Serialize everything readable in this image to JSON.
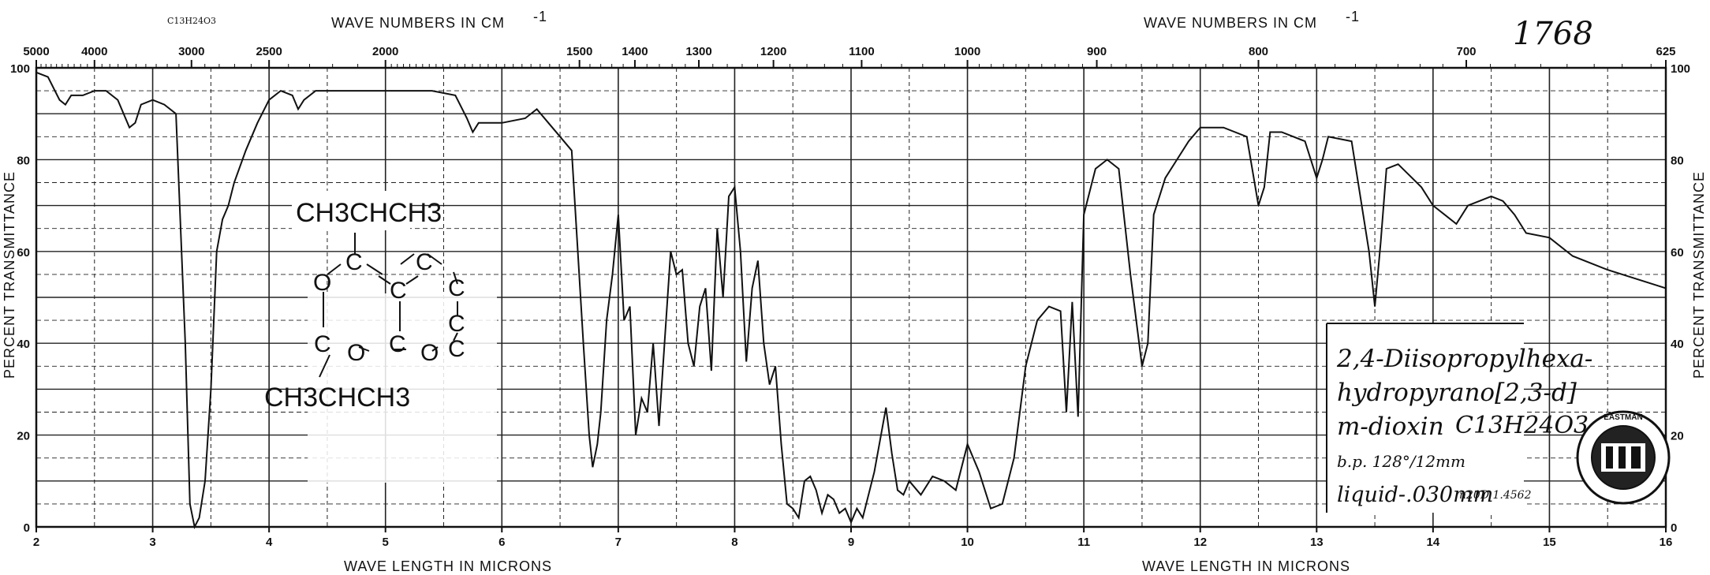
{
  "chart_data": {
    "type": "line",
    "top_axis_title_left": "WAVE NUMBERS IN CM",
    "top_axis_title_right": "WAVE NUMBERS IN CM",
    "top_axis_sup": "-1",
    "bottom_axis_title": "WAVE LENGTH IN MICRONS",
    "ylabel": "PERCENT TRANSMITTANCE",
    "formula_tag": "C13H24O3",
    "catalog_number": "1768",
    "xlim": [
      2,
      16
    ],
    "ylim": [
      0,
      100
    ],
    "x_ticks": [
      "2",
      "3",
      "4",
      "5",
      "6",
      "7",
      "8",
      "9",
      "10",
      "11",
      "12",
      "13",
      "14",
      "15",
      "16"
    ],
    "y_ticks": [
      "0",
      "20",
      "40",
      "60",
      "80",
      "100"
    ],
    "wavenumber_ticks": [
      {
        "cm": 5000,
        "label": "5000"
      },
      {
        "cm": 4000,
        "label": "4000"
      },
      {
        "cm": 3000,
        "label": "3000"
      },
      {
        "cm": 2500,
        "label": "2500"
      },
      {
        "cm": 2000,
        "label": "2000"
      },
      {
        "cm": 1500,
        "label": "1500"
      },
      {
        "cm": 1400,
        "label": "1400"
      },
      {
        "cm": 1300,
        "label": "1300"
      },
      {
        "cm": 1200,
        "label": "1200"
      },
      {
        "cm": 1100,
        "label": "1100"
      },
      {
        "cm": 1000,
        "label": "1000"
      },
      {
        "cm": 900,
        "label": "900"
      },
      {
        "cm": 800,
        "label": "800"
      },
      {
        "cm": 700,
        "label": "700"
      },
      {
        "cm": 625,
        "label": "625"
      }
    ],
    "grid": true,
    "series": [
      {
        "x": [
          2.0,
          2.1,
          2.2,
          2.25,
          2.3,
          2.4,
          2.5,
          2.6,
          2.7,
          2.8,
          2.85,
          2.9,
          3.0,
          3.1,
          3.2,
          3.28,
          3.32,
          3.36,
          3.4,
          3.45,
          3.5,
          3.55,
          3.6,
          3.65,
          3.7,
          3.8,
          3.9,
          4.0,
          4.1,
          4.2,
          4.25,
          4.3,
          4.4,
          4.6,
          4.8,
          5.0,
          5.2,
          5.4,
          5.6,
          5.7,
          5.75,
          5.8,
          6.0,
          6.2,
          6.3,
          6.4,
          6.5,
          6.6,
          6.7,
          6.75,
          6.78,
          6.82,
          6.85,
          6.9,
          6.95,
          7.0,
          7.05,
          7.1,
          7.15,
          7.2,
          7.25,
          7.3,
          7.35,
          7.45,
          7.5,
          7.55,
          7.6,
          7.65,
          7.7,
          7.75,
          7.8,
          7.85,
          7.9,
          7.95,
          8.0,
          8.05,
          8.1,
          8.15,
          8.2,
          8.25,
          8.3,
          8.35,
          8.4,
          8.45,
          8.5,
          8.55,
          8.6,
          8.65,
          8.7,
          8.75,
          8.8,
          8.85,
          8.9,
          8.95,
          9.0,
          9.05,
          9.1,
          9.2,
          9.3,
          9.35,
          9.4,
          9.45,
          9.5,
          9.6,
          9.7,
          9.8,
          9.9,
          10.0,
          10.1,
          10.2,
          10.3,
          10.4,
          10.5,
          10.6,
          10.7,
          10.8,
          10.85,
          10.9,
          10.95,
          11.0,
          11.1,
          11.2,
          11.3,
          11.4,
          11.5,
          11.55,
          11.6,
          11.7,
          11.8,
          11.9,
          12.0,
          12.2,
          12.4,
          12.5,
          12.55,
          12.6,
          12.7,
          12.9,
          13.0,
          13.05,
          13.1,
          13.3,
          13.45,
          13.5,
          13.55,
          13.6,
          13.7,
          13.9,
          14.0,
          14.1,
          14.2,
          14.3,
          14.5,
          14.6,
          14.7,
          14.8,
          15.0,
          15.2,
          15.5,
          16.0
        ],
        "y": [
          99,
          98,
          93,
          92,
          94,
          94,
          95,
          95,
          93,
          87,
          88,
          92,
          93,
          92,
          90,
          40,
          5,
          0,
          2,
          10,
          30,
          60,
          67,
          70,
          75,
          82,
          88,
          93,
          95,
          94,
          91,
          93,
          95,
          95,
          95,
          95,
          95,
          95,
          94,
          89,
          86,
          88,
          88,
          89,
          91,
          88,
          85,
          82,
          40,
          20,
          13,
          18,
          25,
          45,
          55,
          68,
          45,
          48,
          20,
          28,
          25,
          40,
          22,
          60,
          55,
          56,
          40,
          35,
          48,
          52,
          34,
          65,
          50,
          72,
          74,
          60,
          36,
          52,
          58,
          40,
          31,
          35,
          18,
          5,
          4,
          2,
          10,
          11,
          8,
          3,
          7,
          6,
          3,
          4,
          1,
          4,
          2,
          12,
          26,
          16,
          8,
          7,
          10,
          7,
          11,
          10,
          8,
          18,
          12,
          4,
          5,
          15,
          35,
          45,
          48,
          47,
          25,
          49,
          24,
          68,
          78,
          80,
          78,
          55,
          35,
          40,
          68,
          76,
          80,
          84,
          87,
          87,
          85,
          70,
          74,
          86,
          86,
          84,
          76,
          80,
          85,
          84,
          60,
          48,
          62,
          78,
          79,
          74,
          70,
          68,
          66,
          70,
          72,
          71,
          68,
          64,
          63,
          59,
          56,
          52
        ]
      }
    ],
    "annotations": {
      "compound_name_1": "2,4-Diisopropylhexa-",
      "compound_name_2": "hydropyrano[2,3-d]",
      "compound_name_3": "m-dioxin",
      "formula_handwritten": "C13H24O3",
      "bp": "b.p. 128°/12mm",
      "sample": "liquid-.030mm",
      "refractive_index": "n20D 1.4562"
    },
    "structure_labels": {
      "top_chain": "CH3CHCH3",
      "bottom_chain": "CH3CHCH3",
      "ring_atoms": [
        "C",
        "C",
        "C",
        "O",
        "C",
        "C",
        "C",
        "O",
        "C",
        "O",
        "C"
      ]
    },
    "seal_text": "EASTMAN"
  }
}
